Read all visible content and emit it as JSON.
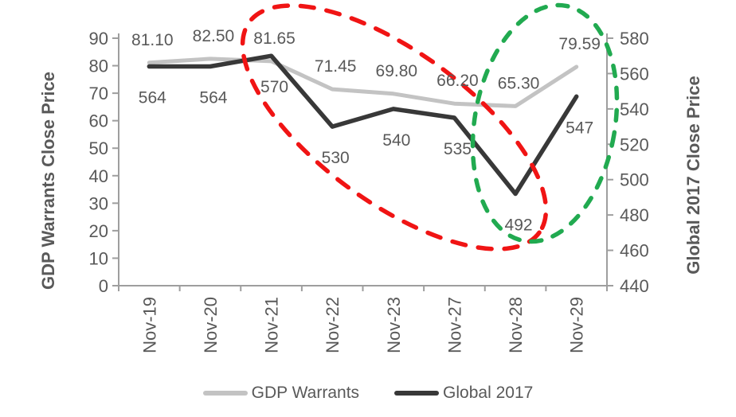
{
  "chart_data": {
    "type": "line",
    "title": "",
    "categories": [
      "Nov-19",
      "Nov-20",
      "Nov-21",
      "Nov-22",
      "Nov-23",
      "Nov-27",
      "Nov-28",
      "Nov-29"
    ],
    "series": [
      {
        "name": "GDP Warrants",
        "axis": "left",
        "color": "#c3c3c3",
        "stroke_width": 5,
        "values": [
          81.1,
          82.5,
          81.65,
          71.45,
          69.8,
          66.2,
          65.3,
          79.59
        ],
        "data_labels": [
          "81.10",
          "82.50",
          "81.65",
          "71.45",
          "69.80",
          "66.20",
          "65.30",
          "79.59"
        ],
        "label_side": "above"
      },
      {
        "name": "Global 2017",
        "axis": "right",
        "color": "#383838",
        "stroke_width": 5.5,
        "values": [
          564,
          564,
          570,
          530,
          540,
          535,
          492,
          547
        ],
        "data_labels": [
          "564",
          "564",
          "570",
          "530",
          "540",
          "535",
          "492",
          "547"
        ],
        "label_side": "below"
      }
    ],
    "left_axis": {
      "title": "GDP Warrants Close Price",
      "min": 0,
      "max": 90,
      "step": 10,
      "tick_labels": [
        "90",
        "80",
        "70",
        "60",
        "50",
        "40",
        "30",
        "20",
        "10",
        "0"
      ]
    },
    "right_axis": {
      "title": "Global 2017 Close Price",
      "min": 440,
      "max": 580,
      "step": 20,
      "tick_labels": [
        "580",
        "560",
        "540",
        "520",
        "500",
        "480",
        "460",
        "440"
      ]
    },
    "annotations": [
      {
        "shape": "ellipse",
        "style": "dashed",
        "color": "#f01414"
      },
      {
        "shape": "ellipse",
        "style": "dashed",
        "color": "#21aa50"
      }
    ],
    "legend": {
      "position": "bottom",
      "items": [
        {
          "label": "GDP Warrants",
          "color": "#c3c3c3"
        },
        {
          "label": "Global 2017",
          "color": "#383838"
        }
      ]
    },
    "grid": false,
    "text_color": "#595959",
    "axis_color": "#9e9e9e"
  }
}
